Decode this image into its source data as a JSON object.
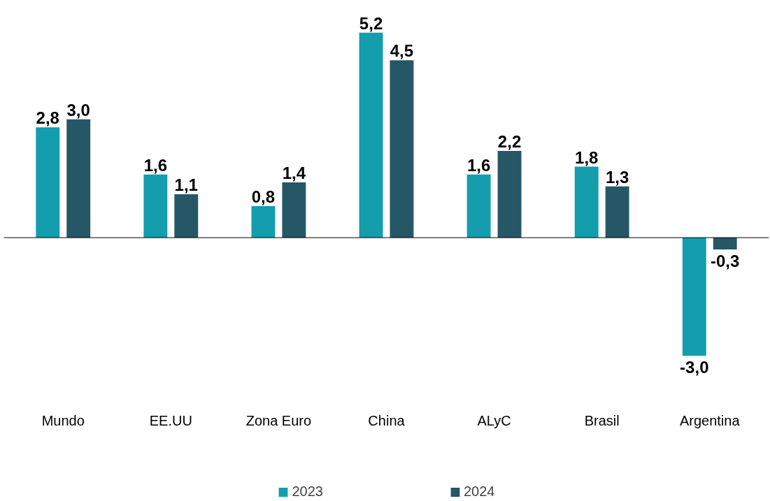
{
  "chart_data": {
    "type": "bar",
    "categories": [
      "Mundo",
      "EE.UU",
      "Zona Euro",
      "China",
      "ALyC",
      "Brasil",
      "Argentina"
    ],
    "series": [
      {
        "name": "2023",
        "color": "#139dad",
        "values": [
          2.8,
          1.6,
          0.8,
          5.2,
          1.6,
          1.8,
          -3.0
        ],
        "value_labels": [
          "2,8",
          "1,6",
          "0,8",
          "5,2",
          "1,6",
          "1,8",
          "-3,0"
        ]
      },
      {
        "name": "2024",
        "color": "#255766",
        "values": [
          3.0,
          1.1,
          1.4,
          4.5,
          2.2,
          1.3,
          -0.3
        ],
        "value_labels": [
          "3,0",
          "1,1",
          "1,4",
          "4,5",
          "2,2",
          "1,3",
          "-0,3"
        ]
      }
    ],
    "legend": "bottom",
    "grid": false
  }
}
